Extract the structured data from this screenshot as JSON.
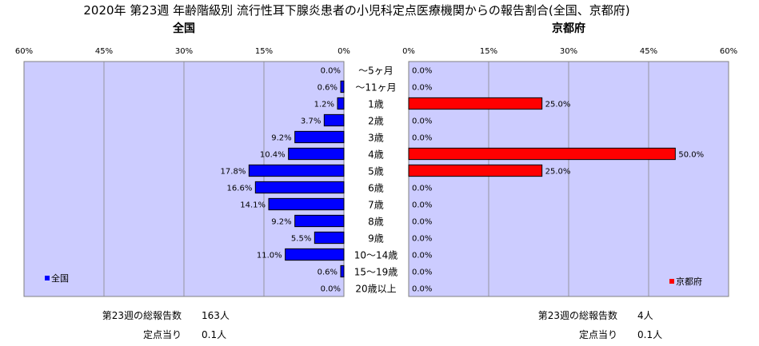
{
  "title": "2020年 第23週 年齢階級別 流行性耳下腺炎患者の小児科定点医療機関からの報告割合(全国、京都府)",
  "colors": {
    "plot_bg": "#CCCCFF",
    "national_bar": "#0000FF",
    "kyoto_bar": "#FF0000",
    "grid": "#888888"
  },
  "chart_data": [
    {
      "type": "bar",
      "orientation": "horizontal",
      "direction": "right-to-left",
      "title": "全国",
      "xlim": [
        0,
        60
      ],
      "ticks": [
        "60%",
        "45%",
        "30%",
        "15%",
        "0%"
      ],
      "categories": [
        "～5ヶ月",
        "～11ヶ月",
        "1歳",
        "2歳",
        "3歳",
        "4歳",
        "5歳",
        "6歳",
        "7歳",
        "8歳",
        "9歳",
        "10～14歳",
        "15～19歳",
        "20歳以上"
      ],
      "series": [
        {
          "name": "全国",
          "values": [
            0.0,
            0.6,
            1.2,
            3.7,
            9.2,
            10.4,
            17.8,
            16.6,
            14.1,
            9.2,
            5.5,
            11.0,
            0.6,
            0.0
          ],
          "labels": [
            "0.0%",
            "0.6%",
            "1.2%",
            "3.7%",
            "9.2%",
            "10.4%",
            "17.8%",
            "16.6%",
            "14.1%",
            "9.2%",
            "5.5%",
            "11.0%",
            "0.6%",
            "0.0%"
          ]
        }
      ],
      "legend_position": "bottom-left"
    },
    {
      "type": "bar",
      "orientation": "horizontal",
      "direction": "left-to-right",
      "title": "京都府",
      "xlim": [
        0,
        60
      ],
      "ticks": [
        "0%",
        "15%",
        "30%",
        "45%",
        "60%"
      ],
      "categories": [
        "～5ヶ月",
        "～11ヶ月",
        "1歳",
        "2歳",
        "3歳",
        "4歳",
        "5歳",
        "6歳",
        "7歳",
        "8歳",
        "9歳",
        "10～14歳",
        "15～19歳",
        "20歳以上"
      ],
      "series": [
        {
          "name": "京都府",
          "values": [
            0.0,
            0.0,
            25.0,
            0.0,
            0.0,
            50.0,
            25.0,
            0.0,
            0.0,
            0.0,
            0.0,
            0.0,
            0.0,
            0.0
          ],
          "labels": [
            "0.0%",
            "0.0%",
            "25.0%",
            "0.0%",
            "0.0%",
            "50.0%",
            "25.0%",
            "0.0%",
            "0.0%",
            "0.0%",
            "0.0%",
            "0.0%",
            "0.0%",
            "0.0%"
          ]
        }
      ],
      "legend_position": "bottom-right"
    }
  ],
  "footer": {
    "national": {
      "total_label": "第23週の総報告数",
      "total_value": "163人",
      "per_label": "定点当り",
      "per_value": "0.1人"
    },
    "kyoto": {
      "total_label": "第23週の総報告数",
      "total_value": "4人",
      "per_label": "定点当り",
      "per_value": "0.1人"
    }
  }
}
